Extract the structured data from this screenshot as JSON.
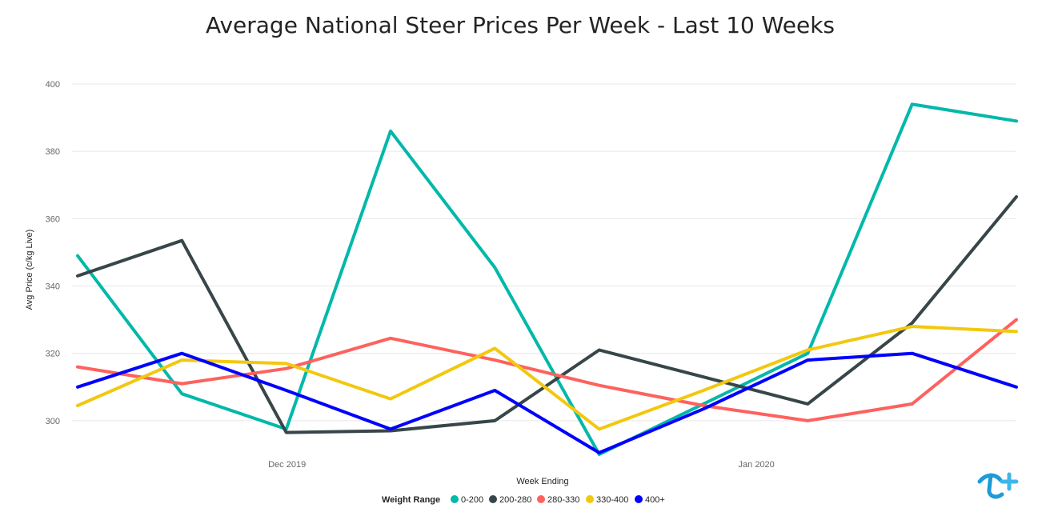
{
  "chart_data": {
    "type": "line",
    "title": "Average National Steer Prices Per Week - Last 10 Weeks",
    "xlabel": "Week Ending",
    "ylabel": "Avg Price (c/kg Live)",
    "x_tick_labels": [
      "Dec 2019",
      "Jan 2020"
    ],
    "ylim": [
      290,
      400
    ],
    "y_ticks": [
      300,
      320,
      340,
      360,
      380,
      400
    ],
    "grid": true,
    "legend": {
      "title": "Weight Range",
      "placement": "bottom-center"
    },
    "series": [
      {
        "name": "0-200",
        "color": "#01B8AA",
        "values": [
          349,
          308,
          297.5,
          386,
          345.5,
          290,
          305,
          320,
          394,
          389
        ]
      },
      {
        "name": "200-280",
        "color": "#374649",
        "values": [
          343,
          353.5,
          296.5,
          297,
          300,
          321,
          313,
          305,
          329,
          366.5
        ]
      },
      {
        "name": "280-330",
        "color": "#FD625E",
        "values": [
          316,
          311,
          315.5,
          324.5,
          318,
          310.5,
          304.5,
          300,
          305,
          330
        ]
      },
      {
        "name": "330-400",
        "color": "#F2C80F",
        "values": [
          304.5,
          318,
          317,
          306.5,
          321.5,
          297.5,
          309,
          321,
          328,
          326.5
        ]
      },
      {
        "name": "400+",
        "color": "#0000FF",
        "values": [
          310,
          320,
          309,
          297.5,
          309,
          290.5,
          303.5,
          318,
          320,
          310
        ]
      }
    ]
  },
  "logo": {
    "name": "logo-icon"
  }
}
